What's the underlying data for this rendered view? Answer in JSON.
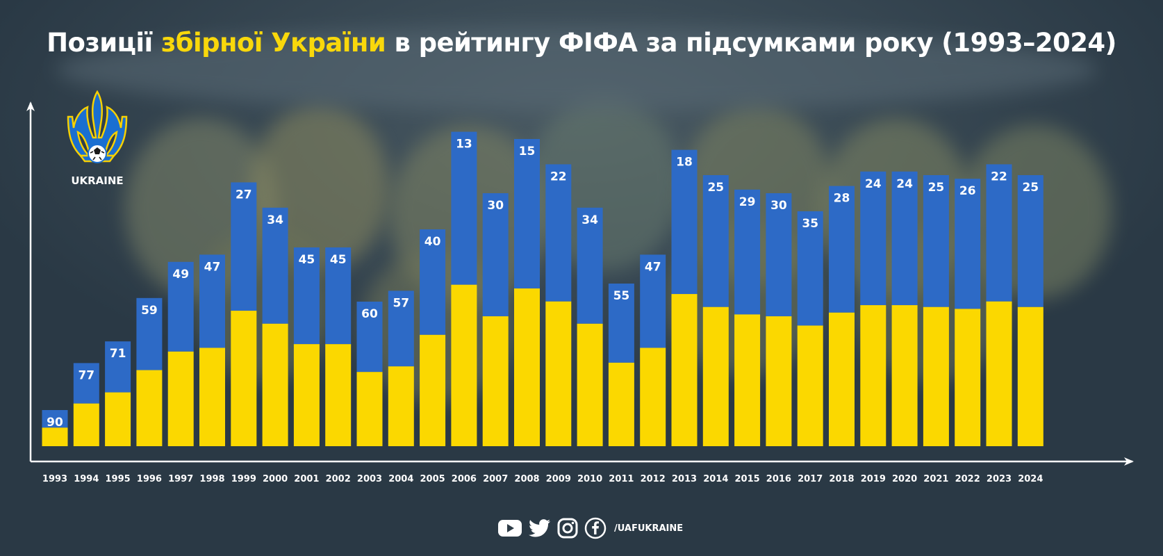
{
  "title": {
    "before": "Позиції ",
    "highlight": "збірної України",
    "after": " в рейтингу ФІФА за підсумками року (1993–2024)"
  },
  "logo": {
    "icon": "ukraine-trident-crest-icon",
    "caption": "UKRAINE"
  },
  "colors": {
    "blue": "#2d6ac6",
    "yellow": "#fbd800",
    "highlight": "#f9d80b",
    "axis": "#ffffff",
    "text": "#ffffff"
  },
  "chart_data": {
    "type": "bar",
    "title": "Позиції збірної України в рейтингу ФІФА за підсумками року (1993–2024)",
    "xlabel": "",
    "ylabel": "",
    "categories": [
      "1993",
      "1994",
      "1995",
      "1996",
      "1997",
      "1998",
      "1999",
      "2000",
      "2001",
      "2002",
      "2003",
      "2004",
      "2005",
      "2006",
      "2007",
      "2008",
      "2009",
      "2010",
      "2011",
      "2012",
      "2013",
      "2014",
      "2015",
      "2016",
      "2017",
      "2018",
      "2019",
      "2020",
      "2021",
      "2022",
      "2023",
      "2024"
    ],
    "values": [
      90,
      77,
      71,
      59,
      49,
      47,
      27,
      34,
      45,
      45,
      60,
      57,
      40,
      13,
      30,
      15,
      22,
      34,
      55,
      47,
      18,
      25,
      29,
      30,
      35,
      28,
      24,
      24,
      25,
      26,
      22,
      25
    ],
    "value_meaning": "FIFA ranking position at year end (lower is better; taller bar = better position)",
    "grid": false,
    "legend": "none"
  },
  "footer": {
    "icons": [
      "youtube-icon",
      "twitter-icon",
      "instagram-icon",
      "facebook-icon"
    ],
    "handle": "/UAFUKRAINE"
  }
}
